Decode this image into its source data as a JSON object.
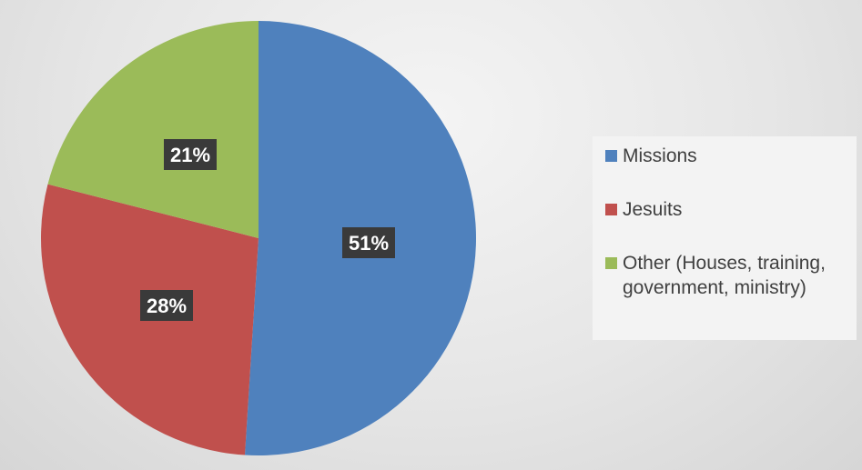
{
  "chart_data": {
    "type": "pie",
    "categories": [
      "Missions",
      "Jesuits",
      "Other (Houses, training, government, ministry)"
    ],
    "values": [
      51,
      28,
      21
    ],
    "data_labels": [
      "51%",
      "28%",
      "21%"
    ],
    "colors": [
      "#4f81bd",
      "#c0504d",
      "#9bbb59"
    ],
    "legend_position": "right",
    "start_angle_deg": 0,
    "direction": "clockwise"
  },
  "legend": {
    "items": [
      {
        "label": "Missions",
        "color": "#4f81bd"
      },
      {
        "label": "Jesuits",
        "color": "#c0504d"
      },
      {
        "label": "Other (Houses, training, government, ministry)",
        "color": "#9bbb59"
      }
    ]
  }
}
